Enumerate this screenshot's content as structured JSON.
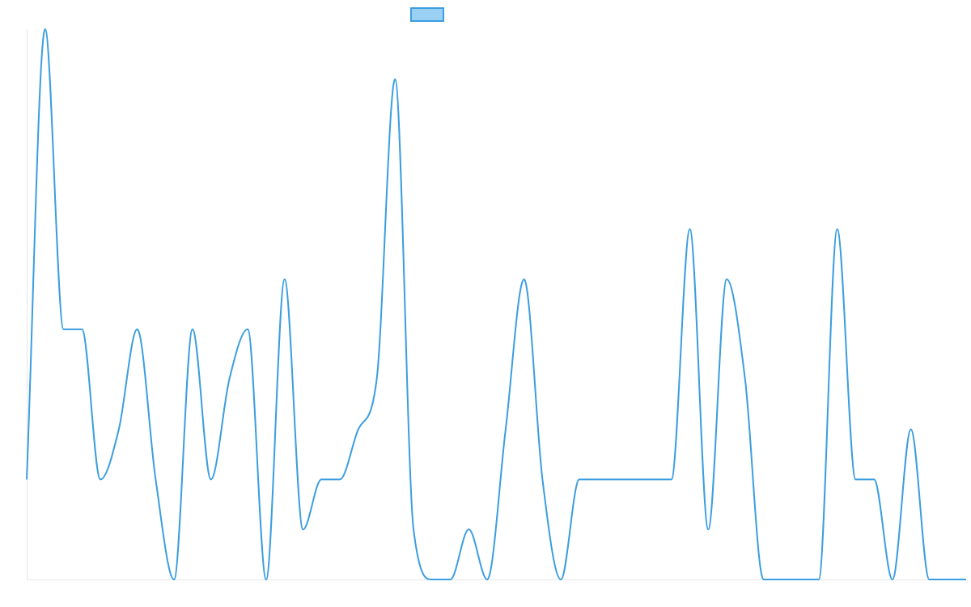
{
  "colors": {
    "series_stroke": "#3a9ee0",
    "series_fill": "#9bd0f5",
    "axis": "#e6e6e6"
  },
  "legend": {
    "label": ""
  },
  "chart_data": {
    "type": "line",
    "title": "",
    "xlabel": "",
    "ylabel": "",
    "grid": false,
    "legend_position": "top-center",
    "y_ticks_visible": false,
    "x_ticks_visible": false,
    "ylim": [
      0,
      11
    ],
    "series": [
      {
        "name": "",
        "interpolation": "monotone",
        "values": [
          2,
          11,
          5,
          5,
          2,
          3,
          5,
          2,
          0,
          5,
          2,
          4,
          5,
          0,
          6,
          1,
          2,
          2,
          3,
          4,
          10,
          1,
          0,
          0,
          1,
          0,
          3,
          6,
          2,
          0,
          2,
          2,
          2,
          2,
          2,
          2,
          7,
          1,
          6,
          4,
          0,
          0,
          0,
          0,
          7,
          2,
          2,
          0,
          3,
          0,
          0,
          0
        ]
      }
    ]
  }
}
